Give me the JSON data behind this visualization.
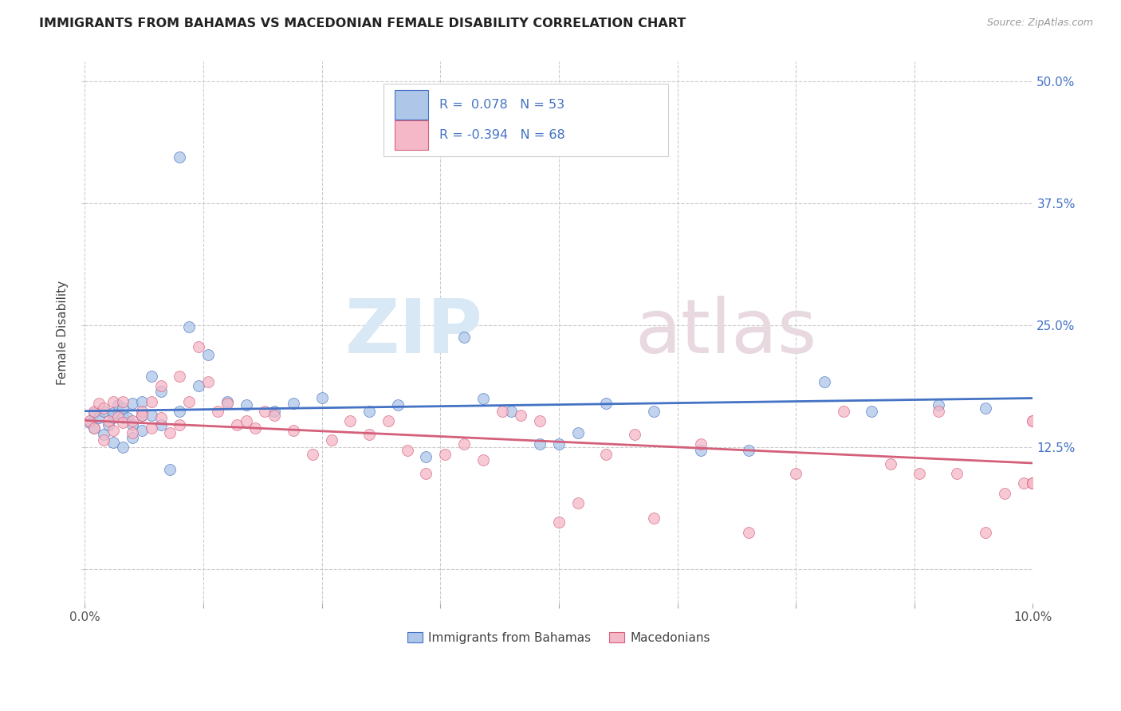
{
  "title": "IMMIGRANTS FROM BAHAMAS VS MACEDONIAN FEMALE DISABILITY CORRELATION CHART",
  "source": "Source: ZipAtlas.com",
  "ylabel": "Female Disability",
  "legend_label1": "Immigrants from Bahamas",
  "legend_label2": "Macedonians",
  "R1": 0.078,
  "N1": 53,
  "R2": -0.394,
  "N2": 68,
  "color_blue": "#aec6e8",
  "color_pink": "#f5b8c8",
  "line_color_blue": "#4472c4",
  "line_color_pink": "#d45f7a",
  "watermark_zip": "ZIP",
  "watermark_atlas": "atlas",
  "x_min": 0.0,
  "x_max": 0.1,
  "y_min": -0.035,
  "y_max": 0.52,
  "y_ticks": [
    0.0,
    0.125,
    0.25,
    0.375,
    0.5
  ],
  "y_tick_labels_right": [
    "",
    "12.5%",
    "25.0%",
    "37.5%",
    "50.0%"
  ],
  "blue_points_x": [
    0.0005,
    0.001,
    0.001,
    0.0015,
    0.002,
    0.002,
    0.0025,
    0.003,
    0.003,
    0.003,
    0.0035,
    0.004,
    0.004,
    0.004,
    0.0045,
    0.005,
    0.005,
    0.005,
    0.006,
    0.006,
    0.006,
    0.007,
    0.007,
    0.008,
    0.008,
    0.009,
    0.01,
    0.01,
    0.011,
    0.012,
    0.013,
    0.015,
    0.017,
    0.02,
    0.022,
    0.025,
    0.03,
    0.033,
    0.036,
    0.04,
    0.042,
    0.045,
    0.048,
    0.05,
    0.052,
    0.055,
    0.06,
    0.065,
    0.07,
    0.078,
    0.083,
    0.09,
    0.095
  ],
  "blue_points_y": [
    0.15,
    0.145,
    0.16,
    0.155,
    0.138,
    0.162,
    0.148,
    0.13,
    0.155,
    0.16,
    0.168,
    0.125,
    0.155,
    0.165,
    0.155,
    0.148,
    0.135,
    0.17,
    0.158,
    0.142,
    0.172,
    0.198,
    0.158,
    0.182,
    0.148,
    0.102,
    0.422,
    0.162,
    0.248,
    0.188,
    0.22,
    0.172,
    0.168,
    0.162,
    0.17,
    0.176,
    0.162,
    0.168,
    0.115,
    0.238,
    0.175,
    0.162,
    0.128,
    0.128,
    0.14,
    0.17,
    0.162,
    0.122,
    0.122,
    0.192,
    0.162,
    0.168,
    0.165
  ],
  "pink_points_x": [
    0.0005,
    0.001,
    0.001,
    0.0015,
    0.002,
    0.002,
    0.0025,
    0.003,
    0.003,
    0.0035,
    0.004,
    0.004,
    0.005,
    0.005,
    0.006,
    0.006,
    0.007,
    0.007,
    0.008,
    0.008,
    0.009,
    0.01,
    0.01,
    0.011,
    0.012,
    0.013,
    0.014,
    0.015,
    0.016,
    0.017,
    0.018,
    0.019,
    0.02,
    0.022,
    0.024,
    0.026,
    0.028,
    0.03,
    0.032,
    0.034,
    0.036,
    0.038,
    0.04,
    0.042,
    0.044,
    0.046,
    0.048,
    0.05,
    0.052,
    0.055,
    0.058,
    0.06,
    0.065,
    0.07,
    0.075,
    0.08,
    0.085,
    0.088,
    0.09,
    0.092,
    0.095,
    0.097,
    0.099,
    0.1,
    0.1,
    0.1,
    0.1,
    0.1
  ],
  "pink_points_y": [
    0.152,
    0.145,
    0.162,
    0.17,
    0.132,
    0.165,
    0.152,
    0.172,
    0.142,
    0.156,
    0.15,
    0.172,
    0.14,
    0.152,
    0.162,
    0.158,
    0.172,
    0.145,
    0.188,
    0.155,
    0.14,
    0.198,
    0.148,
    0.172,
    0.228,
    0.192,
    0.162,
    0.17,
    0.148,
    0.152,
    0.145,
    0.162,
    0.158,
    0.142,
    0.118,
    0.132,
    0.152,
    0.138,
    0.152,
    0.122,
    0.098,
    0.118,
    0.128,
    0.112,
    0.162,
    0.158,
    0.152,
    0.048,
    0.068,
    0.118,
    0.138,
    0.052,
    0.128,
    0.038,
    0.098,
    0.162,
    0.108,
    0.098,
    0.162,
    0.098,
    0.038,
    0.078,
    0.088,
    0.152,
    0.152,
    0.088,
    0.088,
    0.088
  ]
}
